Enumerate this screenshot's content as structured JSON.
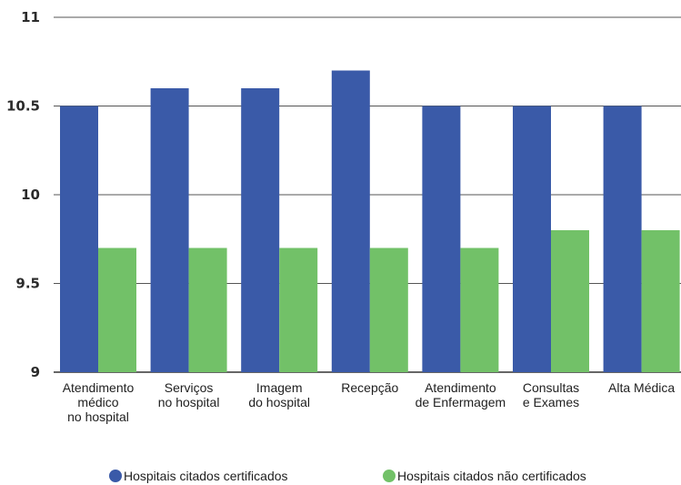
{
  "chart_data": {
    "type": "bar",
    "categories": [
      [
        "Atendimento",
        "médico",
        "no hospital"
      ],
      [
        "Serviços",
        "no hospital"
      ],
      [
        "Imagem",
        "do hospital"
      ],
      [
        "Recepção"
      ],
      [
        "Atendimento",
        "de Enfermagem"
      ],
      [
        "Consultas",
        "e Exames"
      ],
      [
        "Alta Médica"
      ]
    ],
    "series": [
      {
        "name": "Hospitais citados certificados",
        "color": "#3a5aa8",
        "values": [
          10.5,
          10.6,
          10.6,
          10.7,
          10.5,
          10.5,
          10.5
        ]
      },
      {
        "name": "Hospitais citados não certificados",
        "color": "#72c168",
        "values": [
          9.7,
          9.7,
          9.7,
          9.7,
          9.7,
          9.8,
          9.8
        ]
      }
    ],
    "ylim": [
      9,
      11
    ],
    "yticks": [
      "9",
      "9.5",
      "10",
      "10.5",
      "11"
    ],
    "grid": true,
    "legend_position": "bottom"
  }
}
